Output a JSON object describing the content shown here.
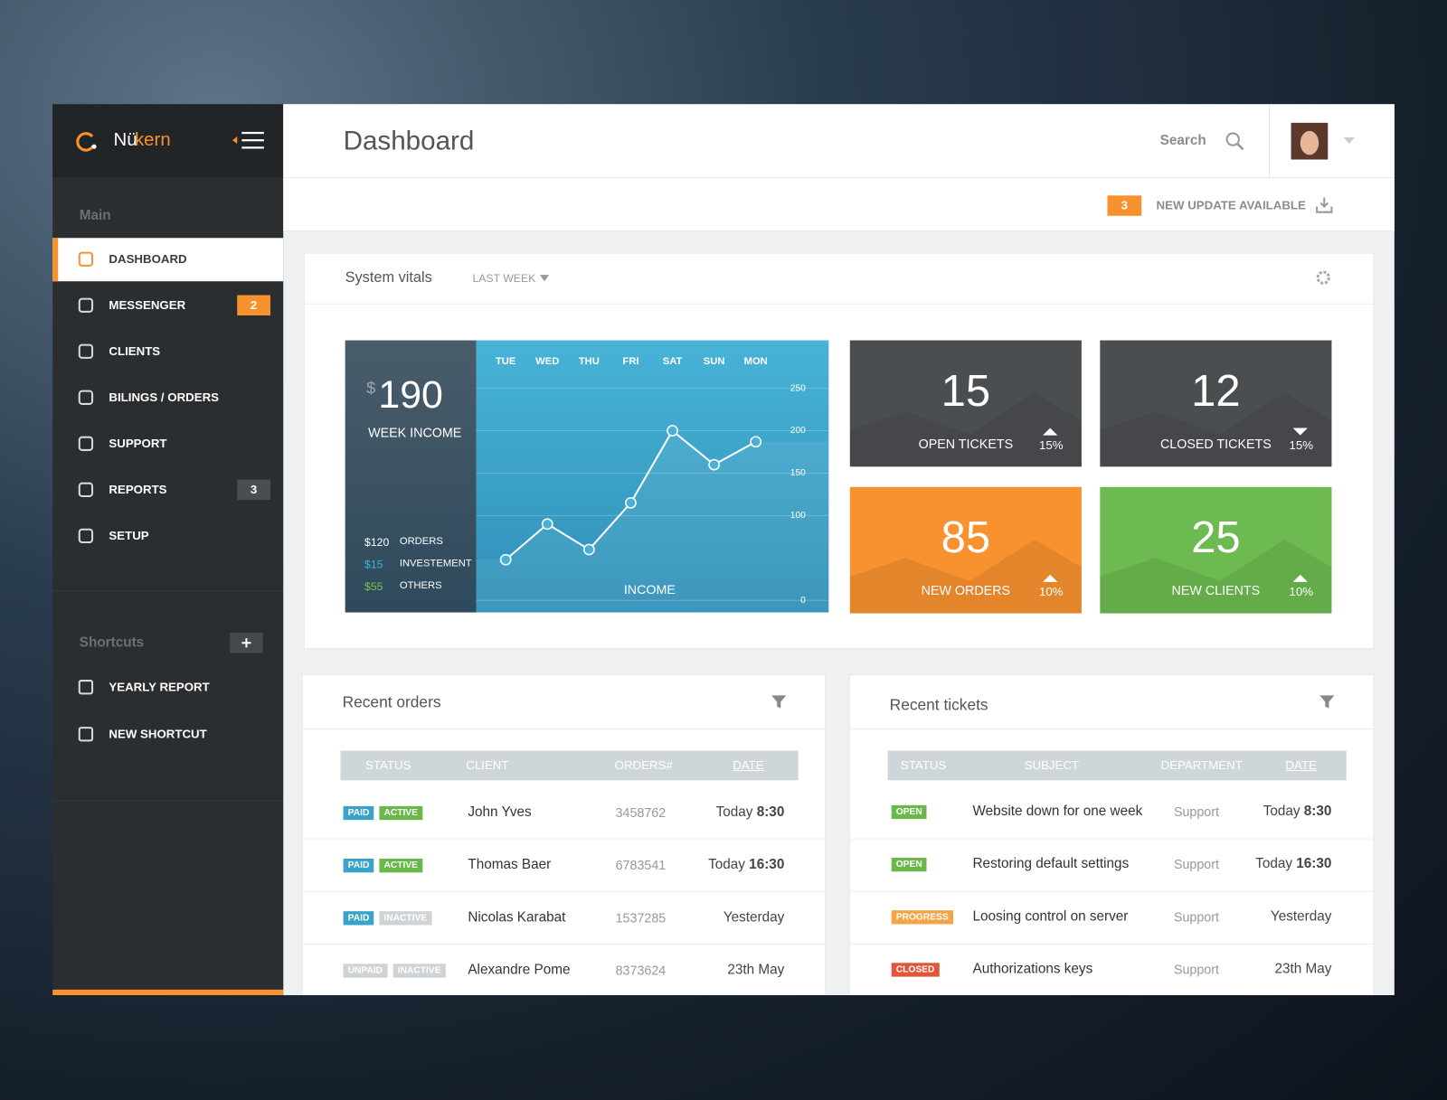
{
  "brand": {
    "name_first": "Nü",
    "name_second": "kern"
  },
  "sidebar": {
    "main_label": "Main",
    "items": [
      {
        "label": "DASHBOARD",
        "active": true
      },
      {
        "label": "MESSENGER",
        "badge": 2,
        "badge_color": "#f7922f"
      },
      {
        "label": "CLIENTS"
      },
      {
        "label": "BILINGS / ORDERS"
      },
      {
        "label": "SUPPORT"
      },
      {
        "label": "REPORTS",
        "badge": 3,
        "badge_color": "#4a4d51"
      },
      {
        "label": "SETUP"
      }
    ],
    "shortcuts_label": "Shortcuts",
    "shortcuts": [
      "YEARLY REPORT",
      "NEW SHORTCUT"
    ]
  },
  "header": {
    "title": "Dashboard",
    "search": "Search"
  },
  "update": {
    "count": 3,
    "text": "NEW UPDATE AVAILABLE"
  },
  "vitals": {
    "title": "System vitals",
    "period": "LAST WEEK",
    "income": {
      "currency": "$",
      "amount": 190,
      "label": "WEEK INCOME",
      "breakdown": [
        {
          "amount": "$120",
          "label": "ORDERS",
          "color": "#ffffff"
        },
        {
          "amount": "$15",
          "label": "INVESTEMENT",
          "color": "#3cb4e0"
        },
        {
          "amount": "$55",
          "label": "OTHERS",
          "color": "#7cc24e"
        }
      ]
    },
    "tiles": [
      {
        "value": 15,
        "label": "OPEN TICKETS",
        "change": "15%",
        "trend": "up",
        "color": "#4b4e51"
      },
      {
        "value": 12,
        "label": "CLOSED TICKETS",
        "change": "15%",
        "trend": "down",
        "color": "#4b4e51"
      },
      {
        "value": 85,
        "label": "NEW ORDERS",
        "change": "10%",
        "trend": "up",
        "color": "#f7922f"
      },
      {
        "value": 25,
        "label": "NEW CLIENTS",
        "change": "10%",
        "trend": "up",
        "color": "#6dba50"
      }
    ]
  },
  "chart_data": {
    "type": "line",
    "title": "INCOME",
    "categories": [
      "TUE",
      "WED",
      "THU",
      "FRI",
      "SAT",
      "SUN",
      "MON"
    ],
    "values": [
      48,
      90,
      60,
      115,
      200,
      160,
      187
    ],
    "color": "#ffffff",
    "ylim": [
      0,
      250
    ],
    "yticks": [
      0,
      100,
      150,
      200,
      250
    ],
    "grid": true
  },
  "orders": {
    "title": "Recent orders",
    "columns": [
      "STATUS",
      "CLIENT",
      "ORDERS#",
      "DATE"
    ],
    "rows": [
      {
        "tags": [
          {
            "text": "PAID",
            "color": "#3aa3c9"
          },
          {
            "text": "ACTIVE",
            "color": "#6ab84a"
          }
        ],
        "client": "John Yves",
        "order": 3458762,
        "date": "Today",
        "time": "8:30"
      },
      {
        "tags": [
          {
            "text": "PAID",
            "color": "#3aa3c9"
          },
          {
            "text": "ACTIVE",
            "color": "#6ab84a"
          }
        ],
        "client": "Thomas Baer",
        "order": 6783541,
        "date": "Today",
        "time": "16:30"
      },
      {
        "tags": [
          {
            "text": "PAID",
            "color": "#3aa3c9"
          },
          {
            "text": "INACTIVE",
            "color": "#cfd3d6"
          }
        ],
        "client": "Nicolas Karabat",
        "order": 1537285,
        "date": "Yesterday"
      },
      {
        "tags": [
          {
            "text": "UNPAID",
            "color": "#cfd3d6"
          },
          {
            "text": "INACTIVE",
            "color": "#cfd3d6"
          }
        ],
        "client": "Alexandre Pome",
        "order": 8373624,
        "date": "23th May"
      }
    ]
  },
  "tickets": {
    "title": "Recent tickets",
    "columns": [
      "STATUS",
      "SUBJECT",
      "DEPARTMENT",
      "DATE"
    ],
    "rows": [
      {
        "tag": {
          "text": "OPEN",
          "color": "#6ab84a"
        },
        "subject": "Website down for one week",
        "department": "Support",
        "date": "Today",
        "time": "8:30"
      },
      {
        "tag": {
          "text": "OPEN",
          "color": "#6ab84a"
        },
        "subject": "Restoring default settings",
        "department": "Support",
        "date": "Today",
        "time": "16:30"
      },
      {
        "tag": {
          "text": "PROGRESS",
          "color": "#f5a445"
        },
        "subject": "Loosing control on server",
        "department": "Support",
        "date": "Yesterday"
      },
      {
        "tag": {
          "text": "CLOSED",
          "color": "#e1563a"
        },
        "subject": "Authorizations keys",
        "department": "Support",
        "date": "23th May"
      }
    ]
  }
}
